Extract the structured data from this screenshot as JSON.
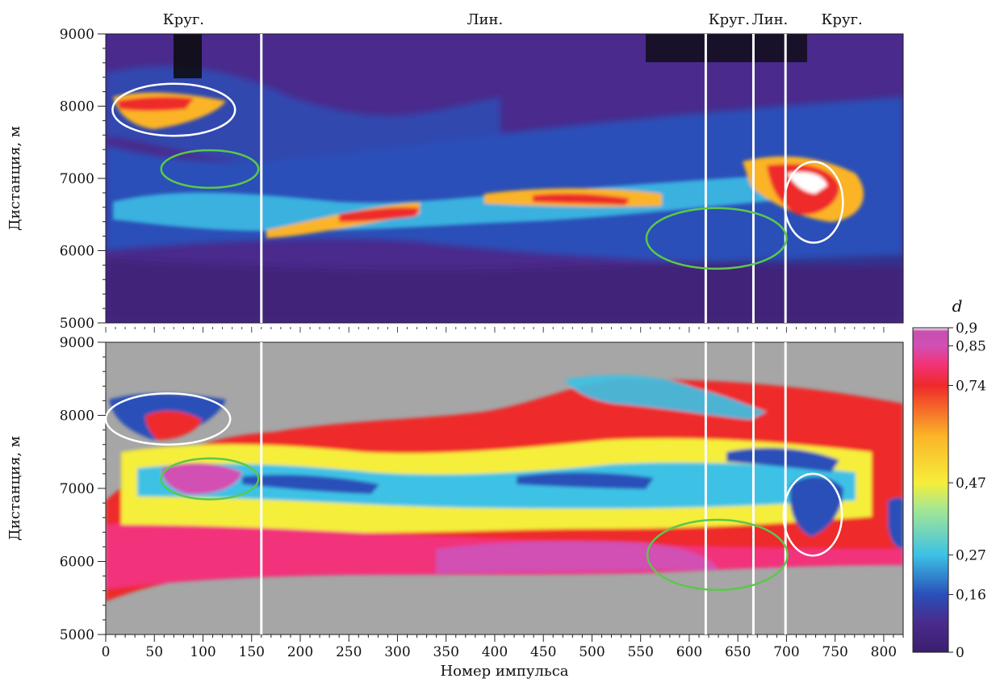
{
  "chart_data": [
    {
      "type": "heatmap",
      "panel": "top",
      "x_range": [
        0,
        820
      ],
      "y_range": [
        5000,
        9000
      ],
      "ylabel": "Дистанция, м",
      "yticks": [
        5000,
        6000,
        7000,
        8000,
        9000
      ],
      "background_color": "#4a2a8c",
      "mode_markers": [
        160,
        617,
        666,
        699
      ],
      "mode_labels": [
        {
          "x": 80,
          "label": "Круг."
        },
        {
          "x": 390,
          "label": "Лин."
        },
        {
          "x": 641,
          "label": "Круг."
        },
        {
          "x": 683,
          "label": "Лин."
        },
        {
          "x": 757,
          "label": "Круг."
        }
      ],
      "highlight_ellipses": [
        {
          "color": "white",
          "cx": 70,
          "cy": 7950,
          "rx": 63,
          "ry": 360
        },
        {
          "color": "green",
          "cx": 107,
          "cy": 7130,
          "rx": 50,
          "ry": 260
        },
        {
          "color": "green",
          "cx": 628,
          "cy": 6170,
          "rx": 72,
          "ry": 420
        },
        {
          "color": "white",
          "cx": 728,
          "cy": 6670,
          "rx": 30,
          "ry": 560
        }
      ]
    },
    {
      "type": "heatmap",
      "panel": "bottom",
      "x_range": [
        0,
        820
      ],
      "y_range": [
        5000,
        9000
      ],
      "xlabel": "Номер импульса",
      "ylabel": "Дистанция, м",
      "xticks": [
        0,
        50,
        100,
        150,
        200,
        250,
        300,
        350,
        400,
        450,
        500,
        550,
        600,
        650,
        700,
        750,
        800
      ],
      "yticks": [
        5000,
        6000,
        7000,
        8000,
        9000
      ],
      "background_color": "#a6a6a6",
      "mode_markers": [
        160,
        617,
        666,
        699
      ],
      "highlight_ellipses": [
        {
          "color": "white",
          "cx": 64,
          "cy": 7950,
          "rx": 64,
          "ry": 350
        },
        {
          "color": "green",
          "cx": 107,
          "cy": 7130,
          "rx": 50,
          "ry": 280
        },
        {
          "color": "green",
          "cx": 629,
          "cy": 6090,
          "rx": 72,
          "ry": 480
        },
        {
          "color": "white",
          "cx": 727,
          "cy": 6640,
          "rx": 30,
          "ry": 560
        }
      ]
    }
  ],
  "colorbar": {
    "title": "d",
    "range": [
      0,
      0.9
    ],
    "tick_labels": [
      "0",
      "0,16",
      "0,27",
      "0,47",
      "0,74",
      "0,85",
      "0,9"
    ],
    "tick_values": [
      0,
      0.16,
      0.27,
      0.47,
      0.74,
      0.85,
      0.9
    ],
    "stops": [
      {
        "value": 0,
        "color": "#3a1e6e"
      },
      {
        "value": 0.08,
        "color": "#4a2a8c"
      },
      {
        "value": 0.16,
        "color": "#2a4fb8"
      },
      {
        "value": 0.27,
        "color": "#3cc2e6"
      },
      {
        "value": 0.4,
        "color": "#a8e890"
      },
      {
        "value": 0.47,
        "color": "#f5ee3a"
      },
      {
        "value": 0.6,
        "color": "#fbb428"
      },
      {
        "value": 0.74,
        "color": "#ee2a2a"
      },
      {
        "value": 0.8,
        "color": "#f2337a"
      },
      {
        "value": 0.85,
        "color": "#d24fb3"
      },
      {
        "value": 0.89,
        "color": "#c64fb0"
      },
      {
        "value": 0.9,
        "color": "#ffffff"
      }
    ]
  },
  "colors": {
    "white_marker": "#ffffff",
    "green_ellipse": "#5bc84a",
    "white_ellipse": "#ffffff"
  }
}
